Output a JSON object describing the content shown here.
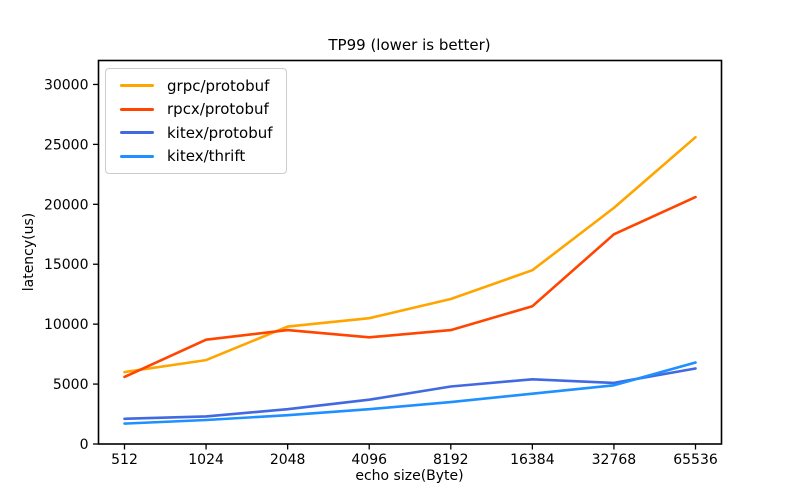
{
  "figure": {
    "background": "#ffffff",
    "text_color": "#000000",
    "spine_color": "#000000",
    "legend_border_color": "#cccccc"
  },
  "chart_data": {
    "type": "line",
    "title": "TP99 (lower is better)",
    "xlabel": "echo size(Byte)",
    "ylabel": "latency(us)",
    "categories": [
      "512",
      "1024",
      "2048",
      "4096",
      "8192",
      "16384",
      "32768",
      "65536"
    ],
    "yticks": [
      0,
      5000,
      10000,
      15000,
      20000,
      25000,
      30000
    ],
    "ylim": [
      0,
      32000
    ],
    "grid": false,
    "legend_position": "upper-left",
    "series": [
      {
        "name": "grpc/protobuf",
        "color": "#FFA500",
        "values": [
          6000,
          7000,
          9800,
          10500,
          12100,
          14500,
          19700,
          25600
        ]
      },
      {
        "name": "rpcx/protobuf",
        "color": "#FF4500",
        "values": [
          5600,
          8700,
          9500,
          8900,
          9500,
          11500,
          17500,
          20600
        ]
      },
      {
        "name": "kitex/protobuf",
        "color": "#4169E1",
        "values": [
          2100,
          2300,
          2900,
          3700,
          4800,
          5400,
          5100,
          6300
        ]
      },
      {
        "name": "kitex/thrift",
        "color": "#1E90FF",
        "values": [
          1700,
          2000,
          2400,
          2900,
          3500,
          4200,
          4900,
          6800
        ]
      }
    ]
  }
}
